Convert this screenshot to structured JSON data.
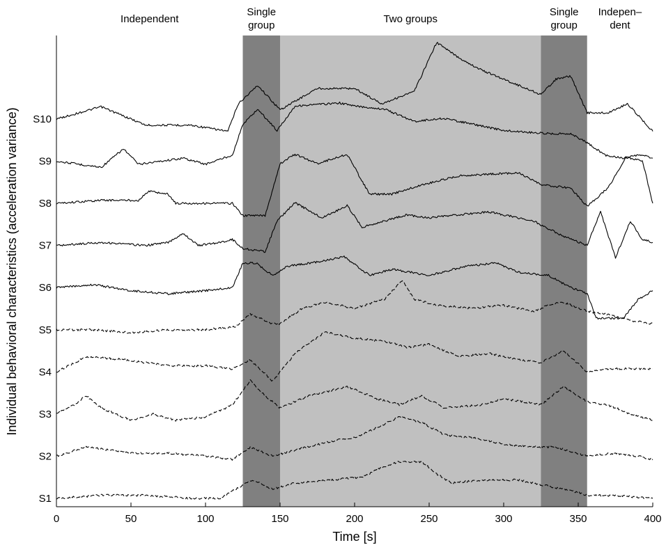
{
  "chart_data": {
    "type": "line",
    "xlabel": "Time [s]",
    "ylabel": "Individual behavioral characteristics (acceleration variance)",
    "xlim": [
      0,
      400
    ],
    "xticks": [
      0,
      50,
      100,
      150,
      200,
      250,
      300,
      350,
      400
    ],
    "grid": false,
    "legend": "none",
    "phases": [
      {
        "label": "Independent",
        "start": 0,
        "end": 125,
        "shade": "#ffffff"
      },
      {
        "label": "Single group",
        "start": 125,
        "end": 150,
        "shade": "#808080"
      },
      {
        "label": "Two groups",
        "start": 150,
        "end": 325,
        "shade": "#c0c0c0"
      },
      {
        "label": "Single group",
        "start": 325,
        "end": 356,
        "shade": "#808080"
      },
      {
        "label": "Indepen–dent",
        "start": 356,
        "end": 400,
        "shade": "#ffffff"
      }
    ],
    "phase_label_lines": [
      [
        "Independent"
      ],
      [
        "Single",
        "group"
      ],
      [
        "Two groups"
      ],
      [
        "Single",
        "group"
      ],
      [
        "Indepen–",
        "dent"
      ]
    ],
    "series": [
      {
        "name": "S10",
        "style": "solid",
        "points": [
          [
            0,
            0
          ],
          [
            30,
            0.4
          ],
          [
            60,
            -0.2
          ],
          [
            90,
            -0.2
          ],
          [
            115,
            -0.4
          ],
          [
            122,
            0.5
          ],
          [
            135,
            1.1
          ],
          [
            150,
            0.3
          ],
          [
            175,
            1.0
          ],
          [
            200,
            1.0
          ],
          [
            218,
            0.5
          ],
          [
            240,
            0.9
          ],
          [
            255,
            2.5
          ],
          [
            270,
            2.0
          ],
          [
            285,
            1.6
          ],
          [
            300,
            1.3
          ],
          [
            315,
            1.0
          ],
          [
            325,
            0.8
          ],
          [
            335,
            1.3
          ],
          [
            345,
            1.4
          ],
          [
            356,
            0.2
          ],
          [
            370,
            0.2
          ],
          [
            383,
            0.5
          ],
          [
            400,
            -0.4
          ]
        ]
      },
      {
        "name": "S9",
        "style": "solid",
        "points": [
          [
            0,
            0
          ],
          [
            30,
            -0.2
          ],
          [
            45,
            0.4
          ],
          [
            55,
            -0.1
          ],
          [
            85,
            0.1
          ],
          [
            100,
            -0.1
          ],
          [
            118,
            0.2
          ],
          [
            125,
            1.2
          ],
          [
            135,
            1.7
          ],
          [
            148,
            1.0
          ],
          [
            160,
            1.8
          ],
          [
            190,
            1.9
          ],
          [
            200,
            1.8
          ],
          [
            220,
            1.7
          ],
          [
            240,
            1.3
          ],
          [
            260,
            1.4
          ],
          [
            280,
            1.2
          ],
          [
            300,
            1.0
          ],
          [
            330,
            0.9
          ],
          [
            345,
            0.9
          ],
          [
            356,
            0.6
          ],
          [
            368,
            0.2
          ],
          [
            380,
            0.1
          ],
          [
            392,
            0.2
          ],
          [
            400,
            0.1
          ]
        ]
      },
      {
        "name": "S8",
        "style": "solid",
        "points": [
          [
            0,
            0
          ],
          [
            30,
            0.1
          ],
          [
            55,
            0.1
          ],
          [
            62,
            0.4
          ],
          [
            75,
            0.3
          ],
          [
            80,
            0.0
          ],
          [
            100,
            0.0
          ],
          [
            118,
            0.0
          ],
          [
            125,
            -0.4
          ],
          [
            140,
            -0.4
          ],
          [
            150,
            1.3
          ],
          [
            160,
            1.6
          ],
          [
            175,
            1.3
          ],
          [
            195,
            1.6
          ],
          [
            210,
            0.3
          ],
          [
            225,
            0.3
          ],
          [
            245,
            0.6
          ],
          [
            270,
            0.9
          ],
          [
            310,
            1.0
          ],
          [
            325,
            0.6
          ],
          [
            345,
            0.5
          ],
          [
            356,
            -0.1
          ],
          [
            370,
            0.5
          ],
          [
            382,
            1.5
          ],
          [
            393,
            1.4
          ],
          [
            400,
            0.0
          ]
        ]
      },
      {
        "name": "S7",
        "style": "solid",
        "points": [
          [
            0,
            0
          ],
          [
            30,
            0.1
          ],
          [
            60,
            0.0
          ],
          [
            75,
            0.1
          ],
          [
            85,
            0.4
          ],
          [
            95,
            0.0
          ],
          [
            110,
            0.1
          ],
          [
            118,
            0.2
          ],
          [
            125,
            -0.1
          ],
          [
            140,
            -0.2
          ],
          [
            148,
            0.8
          ],
          [
            160,
            1.4
          ],
          [
            178,
            0.9
          ],
          [
            195,
            1.3
          ],
          [
            205,
            0.6
          ],
          [
            235,
            1.0
          ],
          [
            250,
            0.9
          ],
          [
            290,
            1.1
          ],
          [
            320,
            0.8
          ],
          [
            340,
            0.3
          ],
          [
            356,
            0.0
          ],
          [
            365,
            1.1
          ],
          [
            375,
            -0.4
          ],
          [
            385,
            0.8
          ],
          [
            393,
            0.2
          ],
          [
            400,
            0.1
          ]
        ]
      },
      {
        "name": "S6",
        "style": "solid",
        "points": [
          [
            0,
            0
          ],
          [
            25,
            0.1
          ],
          [
            50,
            -0.1
          ],
          [
            75,
            -0.2
          ],
          [
            100,
            -0.1
          ],
          [
            118,
            0.0
          ],
          [
            125,
            0.8
          ],
          [
            134,
            0.8
          ],
          [
            145,
            0.4
          ],
          [
            155,
            0.7
          ],
          [
            170,
            0.8
          ],
          [
            193,
            1.0
          ],
          [
            210,
            0.4
          ],
          [
            225,
            0.6
          ],
          [
            250,
            0.4
          ],
          [
            275,
            0.7
          ],
          [
            295,
            0.8
          ],
          [
            310,
            0.5
          ],
          [
            330,
            0.4
          ],
          [
            345,
            0.0
          ],
          [
            356,
            -0.2
          ],
          [
            362,
            -1.0
          ],
          [
            380,
            -1.0
          ],
          [
            390,
            -0.4
          ],
          [
            400,
            -0.1
          ]
        ]
      },
      {
        "name": "S5",
        "style": "dashed",
        "points": [
          [
            0,
            0
          ],
          [
            25,
            0.0
          ],
          [
            50,
            -0.1
          ],
          [
            75,
            0.0
          ],
          [
            100,
            0.0
          ],
          [
            120,
            0.1
          ],
          [
            130,
            0.5
          ],
          [
            145,
            0.2
          ],
          [
            150,
            0.2
          ],
          [
            165,
            0.7
          ],
          [
            180,
            0.9
          ],
          [
            200,
            0.7
          ],
          [
            220,
            1.0
          ],
          [
            232,
            1.6
          ],
          [
            240,
            1.0
          ],
          [
            255,
            0.8
          ],
          [
            280,
            0.7
          ],
          [
            300,
            0.8
          ],
          [
            320,
            0.6
          ],
          [
            330,
            0.8
          ],
          [
            340,
            0.9
          ],
          [
            356,
            0.6
          ],
          [
            370,
            0.5
          ],
          [
            385,
            0.3
          ],
          [
            400,
            0.2
          ]
        ]
      },
      {
        "name": "S4",
        "style": "dashed",
        "points": [
          [
            0,
            0
          ],
          [
            20,
            0.5
          ],
          [
            45,
            0.4
          ],
          [
            75,
            0.2
          ],
          [
            100,
            0.2
          ],
          [
            118,
            0.1
          ],
          [
            130,
            0.4
          ],
          [
            145,
            -0.3
          ],
          [
            160,
            0.6
          ],
          [
            180,
            1.3
          ],
          [
            200,
            1.1
          ],
          [
            220,
            1.0
          ],
          [
            235,
            0.8
          ],
          [
            250,
            0.9
          ],
          [
            270,
            0.5
          ],
          [
            290,
            0.6
          ],
          [
            310,
            0.4
          ],
          [
            325,
            0.3
          ],
          [
            340,
            0.7
          ],
          [
            356,
            0.0
          ],
          [
            370,
            0.1
          ],
          [
            385,
            0.1
          ],
          [
            400,
            0.1
          ]
        ]
      },
      {
        "name": "S3",
        "style": "dashed",
        "points": [
          [
            0,
            0
          ],
          [
            12,
            0.3
          ],
          [
            20,
            0.6
          ],
          [
            30,
            0.2
          ],
          [
            50,
            -0.2
          ],
          [
            65,
            0.0
          ],
          [
            80,
            -0.2
          ],
          [
            100,
            -0.1
          ],
          [
            118,
            0.3
          ],
          [
            130,
            1.1
          ],
          [
            140,
            0.6
          ],
          [
            150,
            0.2
          ],
          [
            170,
            0.6
          ],
          [
            195,
            0.9
          ],
          [
            215,
            0.5
          ],
          [
            230,
            0.3
          ],
          [
            245,
            0.6
          ],
          [
            260,
            0.2
          ],
          [
            285,
            0.3
          ],
          [
            300,
            0.5
          ],
          [
            325,
            0.3
          ],
          [
            340,
            0.9
          ],
          [
            356,
            0.4
          ],
          [
            370,
            0.3
          ],
          [
            385,
            0.0
          ],
          [
            400,
            -0.2
          ]
        ]
      },
      {
        "name": "S2",
        "style": "dashed",
        "points": [
          [
            0,
            0
          ],
          [
            20,
            0.3
          ],
          [
            50,
            0.1
          ],
          [
            75,
            0.1
          ],
          [
            100,
            0.0
          ],
          [
            118,
            -0.1
          ],
          [
            130,
            0.3
          ],
          [
            145,
            0.0
          ],
          [
            160,
            0.2
          ],
          [
            185,
            0.5
          ],
          [
            200,
            0.6
          ],
          [
            218,
            1.0
          ],
          [
            230,
            1.3
          ],
          [
            245,
            1.1
          ],
          [
            260,
            0.7
          ],
          [
            280,
            0.6
          ],
          [
            300,
            0.4
          ],
          [
            320,
            0.3
          ],
          [
            335,
            0.3
          ],
          [
            356,
            0.0
          ],
          [
            375,
            0.1
          ],
          [
            390,
            0.0
          ],
          [
            400,
            -0.1
          ]
        ]
      },
      {
        "name": "S1",
        "style": "dashed",
        "points": [
          [
            0,
            0
          ],
          [
            30,
            0.1
          ],
          [
            60,
            0.1
          ],
          [
            90,
            0.0
          ],
          [
            110,
            0.0
          ],
          [
            120,
            0.3
          ],
          [
            132,
            0.6
          ],
          [
            145,
            0.3
          ],
          [
            160,
            0.5
          ],
          [
            185,
            0.6
          ],
          [
            205,
            0.7
          ],
          [
            218,
            1.0
          ],
          [
            230,
            1.2
          ],
          [
            245,
            1.2
          ],
          [
            255,
            0.8
          ],
          [
            265,
            0.5
          ],
          [
            285,
            0.6
          ],
          [
            310,
            0.6
          ],
          [
            330,
            0.4
          ],
          [
            350,
            0.2
          ],
          [
            356,
            0.1
          ],
          [
            375,
            0.1
          ],
          [
            400,
            0.0
          ]
        ]
      }
    ]
  }
}
